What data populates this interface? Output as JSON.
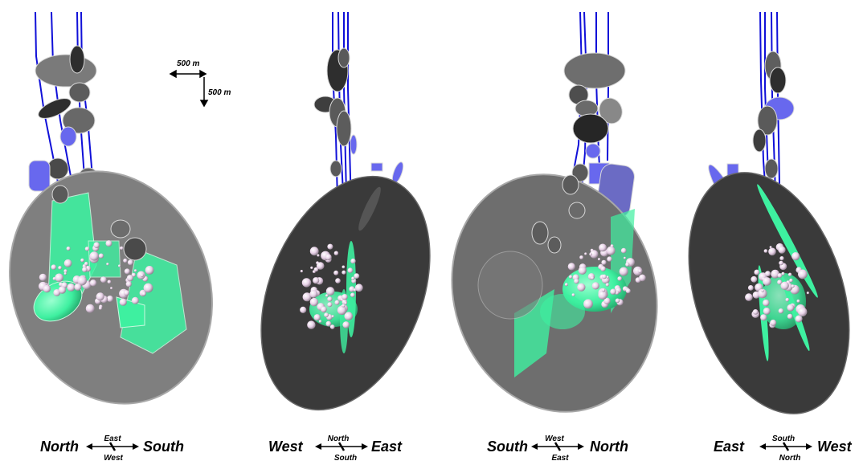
{
  "scale": {
    "horizontal": "500 m",
    "vertical": "500 m"
  },
  "colors": {
    "background": "#ffffff",
    "well_line": "#1010d8",
    "fracture_light": "#808080",
    "fracture_dark": "#3a3a3a",
    "green_fracture": "#3ef0a0",
    "blue_fracture": "#6868ee",
    "event_sphere": "#e8d2e8"
  },
  "views": [
    {
      "id": "view-1",
      "left_label": "North",
      "right_label": "South",
      "compass_top": "East",
      "compass_bottom": "West",
      "main_disc_tone": "light"
    },
    {
      "id": "view-2",
      "left_label": "West",
      "right_label": "East",
      "compass_top": "North",
      "compass_bottom": "South",
      "main_disc_tone": "dark"
    },
    {
      "id": "view-3",
      "left_label": "South",
      "right_label": "North",
      "compass_top": "West",
      "compass_bottom": "East",
      "main_disc_tone": "light"
    },
    {
      "id": "view-4",
      "left_label": "East",
      "right_label": "West",
      "compass_top": "South",
      "compass_bottom": "North",
      "main_disc_tone": "dark"
    }
  ]
}
